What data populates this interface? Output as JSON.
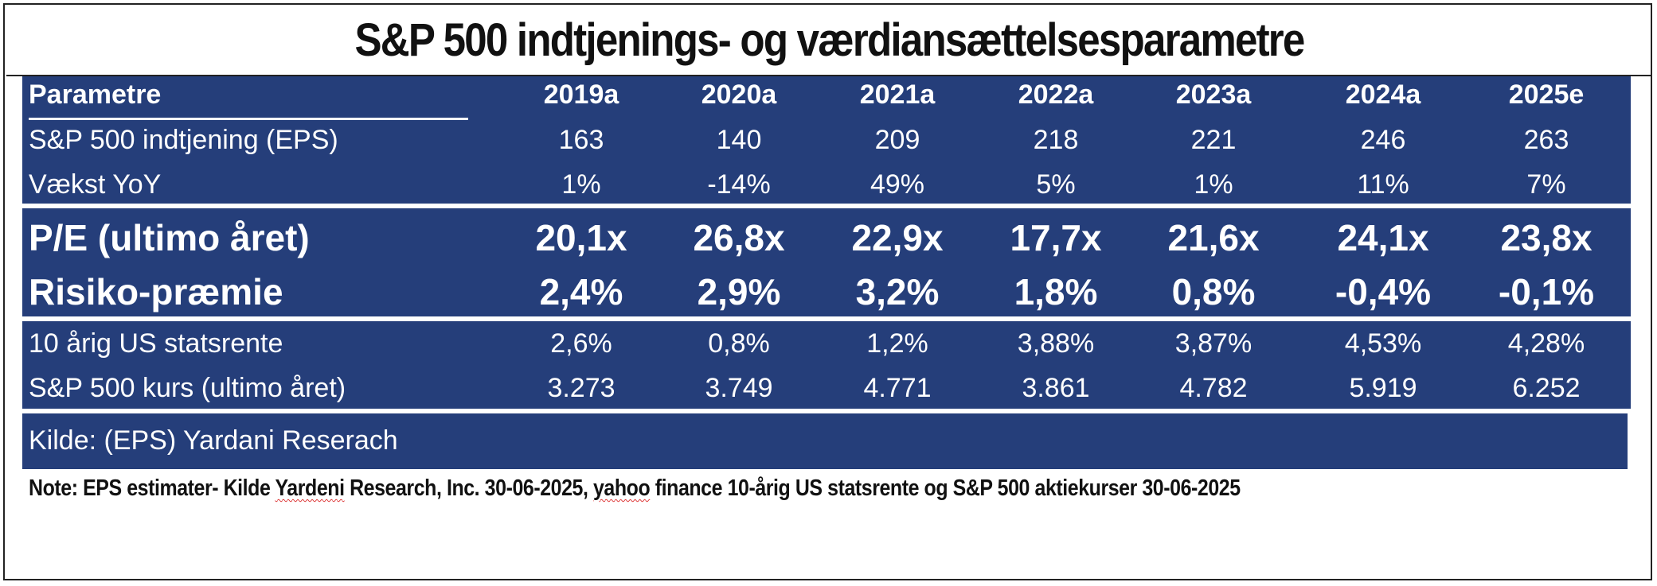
{
  "title": "S&P 500 indtjenings- og værdiansættelsesparametre",
  "table": {
    "header": {
      "label": "Parametre",
      "years": [
        "2019a",
        "2020a",
        "2021a",
        "2022a",
        "2023a",
        "2024a",
        "2025e"
      ]
    },
    "rows": [
      {
        "label": "S&P 500 indtjening (EPS)",
        "values": [
          "163",
          "140",
          "209",
          "218",
          "221",
          "246",
          "263"
        ]
      },
      {
        "label": "Vækst YoY",
        "values": [
          "1%",
          "-14%",
          "49%",
          "5%",
          "1%",
          "11%",
          "7%"
        ]
      },
      {
        "label": "P/E (ultimo året)",
        "values": [
          "20,1x",
          "26,8x",
          "22,9x",
          "17,7x",
          "21,6x",
          "24,1x",
          "23,8x"
        ]
      },
      {
        "label": "Risiko-præmie",
        "values": [
          "2,4%",
          "2,9%",
          "3,2%",
          "1,8%",
          "0,8%",
          "-0,4%",
          "-0,1%"
        ]
      },
      {
        "label": "10 årig US statsrente",
        "values": [
          "2,6%",
          "0,8%",
          "1,2%",
          "3,88%",
          "3,87%",
          "4,53%",
          "4,28%"
        ]
      },
      {
        "label": "S&P 500 kurs (ultimo året)",
        "values": [
          "3.273",
          "3.749",
          "4.771",
          "3.861",
          "4.782",
          "5.919",
          "6.252"
        ]
      }
    ],
    "source": "Kilde: (EPS) Yardani Reserach"
  },
  "note": {
    "part1": "Note: EPS estimater- Kilde ",
    "part2": "Yardeni",
    "part3": " Research, Inc. 30-06-2025, ",
    "part4": "yahoo",
    "part5": " finance 10-årig US statsrente og S&P 500 aktiekurser 30-06-2025"
  },
  "colors": {
    "panel": "#253e7a",
    "text_on_panel": "#ffffff",
    "squiggle": "#d33333"
  },
  "chart_data": {
    "type": "table",
    "title": "S&P 500 indtjenings- og værdiansættelsesparametre",
    "columns": [
      "Parametre",
      "2019a",
      "2020a",
      "2021a",
      "2022a",
      "2023a",
      "2024a",
      "2025e"
    ],
    "rows": [
      [
        "S&P 500 indtjening (EPS)",
        "163",
        "140",
        "209",
        "218",
        "221",
        "246",
        "263"
      ],
      [
        "Vækst YoY",
        "1%",
        "-14%",
        "49%",
        "5%",
        "1%",
        "11%",
        "7%"
      ],
      [
        "P/E (ultimo året)",
        "20,1x",
        "26,8x",
        "22,9x",
        "17,7x",
        "21,6x",
        "24,1x",
        "23,8x"
      ],
      [
        "Risiko-præmie",
        "2,4%",
        "2,9%",
        "3,2%",
        "1,8%",
        "0,8%",
        "-0,4%",
        "-0,1%"
      ],
      [
        "10 årig US statsrente",
        "2,6%",
        "0,8%",
        "1,2%",
        "3,88%",
        "3,87%",
        "4,53%",
        "4,28%"
      ],
      [
        "S&P 500 kurs (ultimo året)",
        "3.273",
        "3.749",
        "4.771",
        "3.861",
        "4.782",
        "5.919",
        "6.252"
      ]
    ]
  }
}
